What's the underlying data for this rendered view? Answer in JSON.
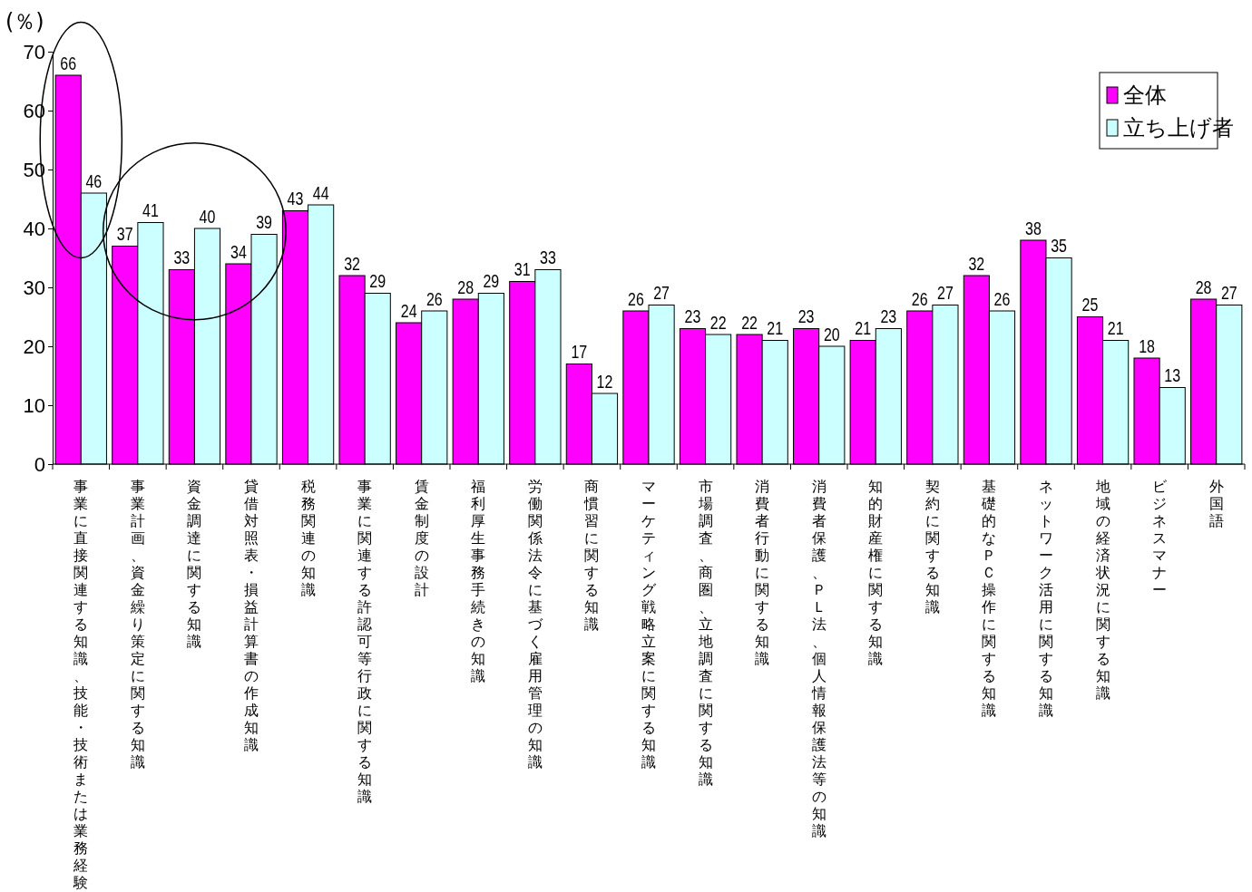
{
  "chart_data": {
    "type": "bar",
    "ylabel": "(％)",
    "categories": [
      "事業に直接関連する知識、技能・技術または業務経験",
      "事業計画、資金繰り策定に関する知識",
      "資金調達に関する知識",
      "貸借対照表・損益計算書の作成知識",
      "税務関連の知識",
      "事業に関連する許認可等行政に関する知識",
      "賃金制度の設計",
      "福利厚生事務手続きの知識",
      "労働関係法令に基づく雇用管理の知識",
      "商慣習に関する知識",
      "マーケティング戦略立案に関する知識",
      "市場調査、商圏、立地調査に関する知識",
      "消費者行動に関する知識",
      "消費者保護、ＰＬ法、個人情報保護法等の知識",
      "知的財産権に関する知識",
      "契約に関する知識",
      "基礎的なＰＣ操作に関する知識",
      "ネットワーク活用に関する知識",
      "地域の経済状況に関する知識",
      "ビジネスマナー",
      "外国語"
    ],
    "series": [
      {
        "name": "全体",
        "color": "#ff00ff",
        "values": [
          66,
          37,
          33,
          34,
          43,
          32,
          24,
          28,
          31,
          17,
          26,
          23,
          22,
          23,
          21,
          26,
          32,
          38,
          25,
          18,
          28
        ]
      },
      {
        "name": "立ち上げ者",
        "color": "#ccffff",
        "values": [
          46,
          41,
          40,
          39,
          44,
          29,
          26,
          29,
          33,
          12,
          27,
          22,
          21,
          20,
          23,
          27,
          26,
          35,
          21,
          13,
          27
        ]
      }
    ],
    "ylim": [
      0,
      70
    ],
    "yticks": [
      0,
      10,
      20,
      30,
      40,
      50,
      60,
      70
    ],
    "grid": false,
    "data_labels": true,
    "legend": "top right"
  }
}
